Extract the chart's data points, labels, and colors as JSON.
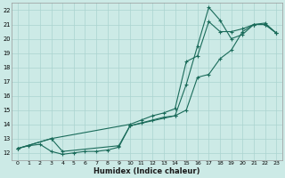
{
  "xlabel": "Humidex (Indice chaleur)",
  "bg_color": "#cceae6",
  "grid_color": "#aad4d0",
  "line_color": "#1a6b5a",
  "xlim": [
    -0.5,
    23.5
  ],
  "ylim": [
    11.5,
    22.5
  ],
  "xticks": [
    0,
    1,
    2,
    3,
    4,
    5,
    6,
    7,
    8,
    9,
    10,
    11,
    12,
    13,
    14,
    15,
    16,
    17,
    18,
    19,
    20,
    21,
    22,
    23
  ],
  "yticks": [
    12,
    13,
    14,
    15,
    16,
    17,
    18,
    19,
    20,
    21,
    22
  ],
  "line1_x": [
    0,
    1,
    2,
    3,
    4,
    5,
    6,
    7,
    8,
    9,
    10,
    11,
    12,
    13,
    14,
    15,
    16,
    17,
    18,
    19,
    20,
    21,
    22,
    23
  ],
  "line1_y": [
    12.3,
    12.5,
    12.6,
    12.1,
    11.9,
    12.0,
    12.1,
    12.1,
    12.2,
    12.4,
    13.9,
    14.1,
    14.3,
    14.5,
    14.6,
    15.0,
    17.3,
    17.5,
    18.6,
    19.2,
    20.5,
    21.0,
    21.0,
    20.4
  ],
  "line2_x": [
    0,
    3,
    10,
    11,
    12,
    13,
    14,
    15,
    16,
    17,
    18,
    19,
    20,
    21,
    22,
    23
  ],
  "line2_y": [
    12.3,
    13.0,
    14.0,
    14.3,
    14.6,
    14.8,
    15.1,
    18.4,
    18.8,
    21.2,
    20.5,
    20.5,
    20.7,
    21.0,
    21.1,
    20.4
  ],
  "line3_x": [
    0,
    3,
    4,
    9,
    10,
    14,
    15,
    16,
    17,
    18,
    19,
    20,
    21,
    22,
    23
  ],
  "line3_y": [
    12.3,
    13.0,
    12.1,
    12.5,
    13.9,
    14.6,
    16.8,
    19.5,
    22.2,
    21.3,
    20.0,
    20.3,
    21.0,
    21.0,
    20.4
  ]
}
